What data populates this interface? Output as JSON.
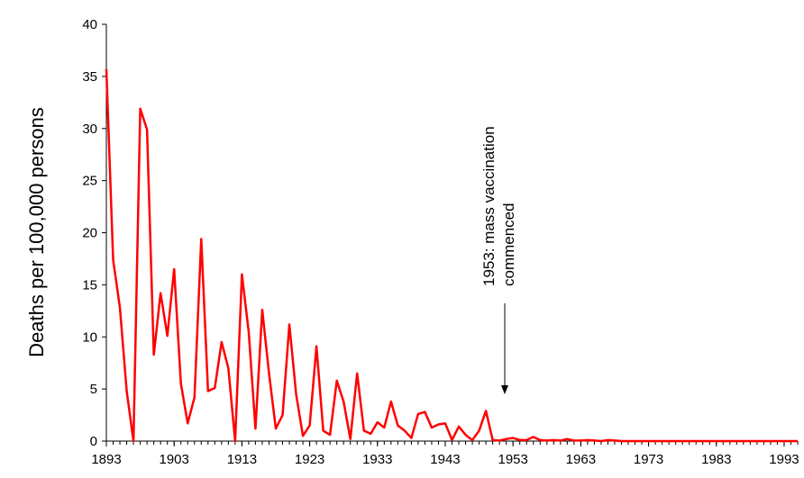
{
  "chart_data": {
    "type": "line",
    "y_label": "Deaths per 100,000 persons",
    "annotation": [
      "1953: mass vaccination",
      "commenced"
    ],
    "x": [
      1893,
      1894,
      1895,
      1896,
      1897,
      1898,
      1899,
      1900,
      1901,
      1902,
      1903,
      1904,
      1905,
      1906,
      1907,
      1908,
      1909,
      1910,
      1911,
      1912,
      1913,
      1914,
      1915,
      1916,
      1917,
      1918,
      1919,
      1920,
      1921,
      1922,
      1923,
      1924,
      1925,
      1926,
      1927,
      1928,
      1929,
      1930,
      1931,
      1932,
      1933,
      1934,
      1935,
      1936,
      1937,
      1938,
      1939,
      1940,
      1941,
      1942,
      1943,
      1944,
      1945,
      1946,
      1947,
      1948,
      1949,
      1950,
      1951,
      1952,
      1953,
      1954,
      1955,
      1956,
      1957,
      1958,
      1959,
      1960,
      1961,
      1962,
      1963,
      1964,
      1965,
      1966,
      1967,
      1968,
      1969,
      1970,
      1971,
      1972,
      1973,
      1974,
      1975,
      1976,
      1977,
      1978,
      1979,
      1980,
      1981,
      1982,
      1983,
      1984,
      1985,
      1986,
      1987,
      1988,
      1989,
      1990,
      1991,
      1992,
      1993,
      1994,
      1995
    ],
    "series": [
      {
        "name": "Deaths",
        "color": "#ff0000",
        "values": [
          35.7,
          17.4,
          12.8,
          4.8,
          0,
          31.9,
          29.9,
          8.3,
          14.2,
          10.1,
          16.5,
          5.5,
          1.7,
          4.2,
          19.4,
          4.8,
          5.1,
          9.5,
          7.0,
          0,
          16.0,
          10.5,
          1.2,
          12.6,
          6.5,
          1.2,
          2.5,
          11.2,
          4.5,
          0.5,
          1.5,
          9.1,
          1.0,
          0.6,
          5.8,
          3.8,
          0.2,
          6.5,
          1.0,
          0.7,
          1.8,
          1.3,
          3.8,
          1.5,
          1.0,
          0.3,
          2.6,
          2.8,
          1.3,
          1.6,
          1.7,
          0.1,
          1.4,
          0.6,
          0.1,
          1.0,
          2.9,
          0.1,
          0.05,
          0.2,
          0.3,
          0.1,
          0.1,
          0.4,
          0.1,
          0.05,
          0.1,
          0.05,
          0.2,
          0.05,
          0.05,
          0.1,
          0.05,
          0,
          0.1,
          0.05,
          0,
          0,
          0,
          0,
          0,
          0,
          0,
          0,
          0,
          0,
          0,
          0,
          0,
          0,
          0,
          0,
          0,
          0,
          0,
          0,
          0,
          0,
          0,
          0,
          0,
          0,
          0
        ]
      }
    ],
    "xlim": [
      1893,
      1995
    ],
    "ylim": [
      0,
      40
    ],
    "xticks": [
      1893,
      1903,
      1913,
      1923,
      1933,
      1943,
      1953,
      1963,
      1973,
      1983,
      1993
    ],
    "yticks": [
      0,
      5,
      10,
      15,
      20,
      25,
      30,
      35,
      40
    ]
  }
}
